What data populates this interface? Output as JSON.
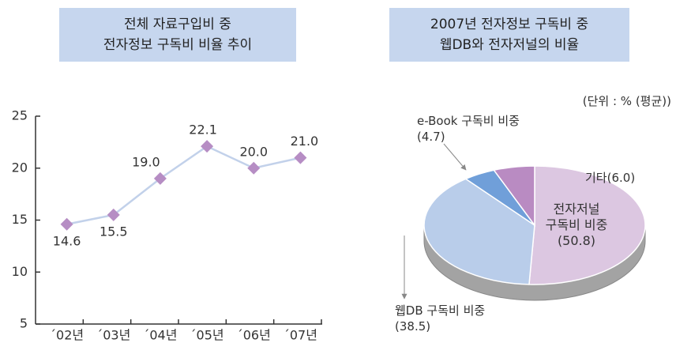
{
  "chart_data": [
    {
      "type": "line",
      "title": "전체 자료구입비 중\n전자정보 구독비 비율 추이",
      "categories": [
        "´02년",
        "´03년",
        "´04년",
        "´05년",
        "´06년",
        "´07년"
      ],
      "values": [
        14.6,
        15.5,
        19.0,
        22.1,
        20.0,
        21.0
      ],
      "value_labels": [
        "14.6",
        "15.5",
        "19.0",
        "22.1",
        "20.0",
        "21.0"
      ],
      "color": "#c2d1ea",
      "marker_color": "#b68dc4",
      "ylim": [
        5,
        25
      ],
      "yticks": [
        5,
        10,
        15,
        20,
        25
      ]
    },
    {
      "type": "pie",
      "title": "2007년 전자정보 구독비 중\n웹DB와 전자저널의 비율",
      "note": "(단위 : % (평균))",
      "categories": [
        "전자저널\n구독비 비중",
        "웹DB 구독비 비중",
        "e-Book 구독비 비중",
        "기타"
      ],
      "values": [
        50.8,
        38.5,
        4.7,
        6.0
      ],
      "value_labels": [
        "(50.8)",
        "(38.5)",
        "(4.7)",
        "(6.0)"
      ],
      "colors": [
        "#dcc7e1",
        "#b9cdea",
        "#709fd9",
        "#b98bc2"
      ]
    }
  ]
}
